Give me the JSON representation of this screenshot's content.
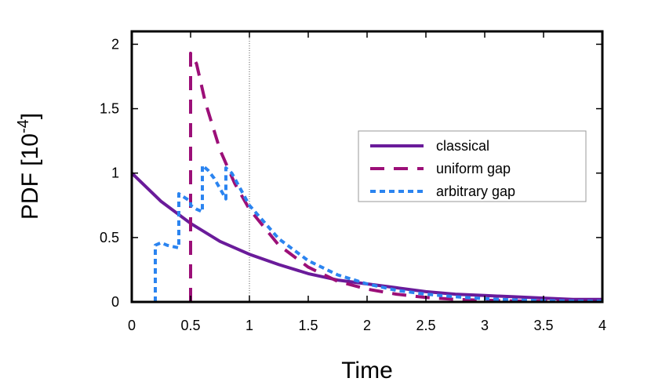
{
  "chart_data": {
    "type": "line",
    "xlabel": "Time",
    "ylabel": "PDF [10",
    "ylabel_sup": "-4",
    "ylabel_close": "]",
    "xlim": [
      0,
      4
    ],
    "ylim": [
      0,
      2.1
    ],
    "xticks": [
      0,
      0.5,
      1,
      1.5,
      2,
      2.5,
      3,
      3.5,
      4
    ],
    "xtick_labels": [
      "0",
      "0.5",
      "1",
      "1.5",
      "2",
      "2.5",
      "3",
      "3.5",
      "4"
    ],
    "yticks": [
      0,
      0.5,
      1,
      1.5,
      2
    ],
    "ytick_labels": [
      "0",
      "0.5",
      "1",
      "1.5",
      "2"
    ],
    "vline_x": 1,
    "grid": false,
    "legend_position": "right",
    "series": [
      {
        "name": "classical",
        "color": "#6a1b9a",
        "style": "solid",
        "x": [
          0,
          0.25,
          0.5,
          0.75,
          1,
          1.25,
          1.5,
          1.75,
          2,
          2.25,
          2.5,
          2.75,
          3,
          3.25,
          3.5,
          3.75,
          4
        ],
        "y": [
          1.0,
          0.78,
          0.61,
          0.47,
          0.37,
          0.29,
          0.22,
          0.17,
          0.14,
          0.11,
          0.08,
          0.06,
          0.05,
          0.04,
          0.03,
          0.02,
          0.02
        ]
      },
      {
        "name": "uniform gap",
        "color": "#9c0f78",
        "style": "dashed",
        "x": [
          0.5,
          0.5,
          0.55,
          0.625,
          0.75,
          0.875,
          1,
          1.25,
          1.5,
          1.75,
          2,
          2.25,
          2.5,
          2.75,
          3,
          3.25,
          3.5,
          3.75,
          4
        ],
        "y": [
          0,
          1.93,
          1.85,
          1.55,
          1.18,
          0.92,
          0.72,
          0.44,
          0.27,
          0.16,
          0.1,
          0.06,
          0.035,
          0.02,
          0.013,
          0.008,
          0.005,
          0.003,
          0.002
        ]
      },
      {
        "name": "arbitrary gap",
        "color": "#2b84f0",
        "style": "dotted",
        "x": [
          0.2,
          0.2,
          0.25,
          0.3,
          0.4,
          0.4,
          0.45,
          0.5,
          0.5,
          0.55,
          0.6,
          0.6,
          0.65,
          0.7,
          0.8,
          0.8,
          0.85,
          1,
          1.25,
          1.5,
          1.75,
          2,
          2.25,
          2.5,
          2.75,
          3,
          3.25,
          3.5,
          3.75,
          4
        ],
        "y": [
          0,
          0.44,
          0.46,
          0.44,
          0.42,
          0.84,
          0.81,
          0.78,
          0.75,
          0.72,
          0.7,
          1.06,
          1.02,
          0.96,
          0.8,
          1.04,
          1.0,
          0.75,
          0.49,
          0.32,
          0.21,
          0.14,
          0.09,
          0.06,
          0.04,
          0.025,
          0.016,
          0.01,
          0.007,
          0.005
        ]
      }
    ]
  }
}
